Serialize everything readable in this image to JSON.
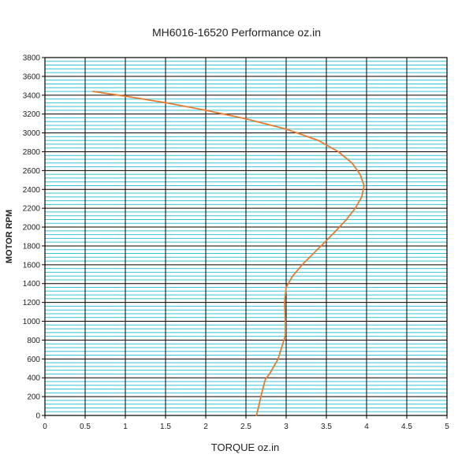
{
  "chart_data": {
    "type": "line",
    "title": "MH6016-16520    Performance oz.in",
    "xlabel": "TORQUE  oz.in",
    "ylabel": "MOTOR RPM",
    "xlim": [
      0,
      5
    ],
    "ylim": [
      0,
      3800
    ],
    "xticks": [
      "0",
      "0.5",
      "1",
      "1.5",
      "2",
      "2.5",
      "3",
      "3.5",
      "4",
      "4.5",
      "5"
    ],
    "yticks": [
      "0",
      "200",
      "400",
      "600",
      "800",
      "1000",
      "1200",
      "1400",
      "1600",
      "1800",
      "2000",
      "2200",
      "2400",
      "2600",
      "2800",
      "3000",
      "3200",
      "3400",
      "3600",
      "3800"
    ],
    "grid": true,
    "colors": {
      "background": "#ffffff",
      "plot_background": "#ffffff",
      "minor_grid": "#33c4d8",
      "major_grid": "#000000",
      "vertical_grid": "#000000",
      "series": "#e87a30"
    },
    "series": [
      {
        "points": [
          {
            "x": 0.6,
            "y": 3440
          },
          {
            "x": 1.0,
            "y": 3390
          },
          {
            "x": 1.5,
            "y": 3320
          },
          {
            "x": 2.0,
            "y": 3240
          },
          {
            "x": 2.5,
            "y": 3150
          },
          {
            "x": 3.0,
            "y": 3040
          },
          {
            "x": 3.4,
            "y": 2920
          },
          {
            "x": 3.65,
            "y": 2800
          },
          {
            "x": 3.82,
            "y": 2680
          },
          {
            "x": 3.92,
            "y": 2560
          },
          {
            "x": 3.97,
            "y": 2440
          },
          {
            "x": 3.94,
            "y": 2320
          },
          {
            "x": 3.86,
            "y": 2200
          },
          {
            "x": 3.75,
            "y": 2080
          },
          {
            "x": 3.62,
            "y": 1960
          },
          {
            "x": 3.48,
            "y": 1840
          },
          {
            "x": 3.34,
            "y": 1720
          },
          {
            "x": 3.2,
            "y": 1600
          },
          {
            "x": 3.08,
            "y": 1480
          },
          {
            "x": 3.0,
            "y": 1360
          },
          {
            "x": 2.98,
            "y": 1200
          },
          {
            "x": 2.99,
            "y": 1000
          },
          {
            "x": 2.99,
            "y": 850
          },
          {
            "x": 2.9,
            "y": 600
          },
          {
            "x": 2.8,
            "y": 450
          },
          {
            "x": 2.74,
            "y": 380
          },
          {
            "x": 2.7,
            "y": 250
          },
          {
            "x": 2.66,
            "y": 100
          },
          {
            "x": 2.63,
            "y": 0
          }
        ]
      }
    ]
  }
}
